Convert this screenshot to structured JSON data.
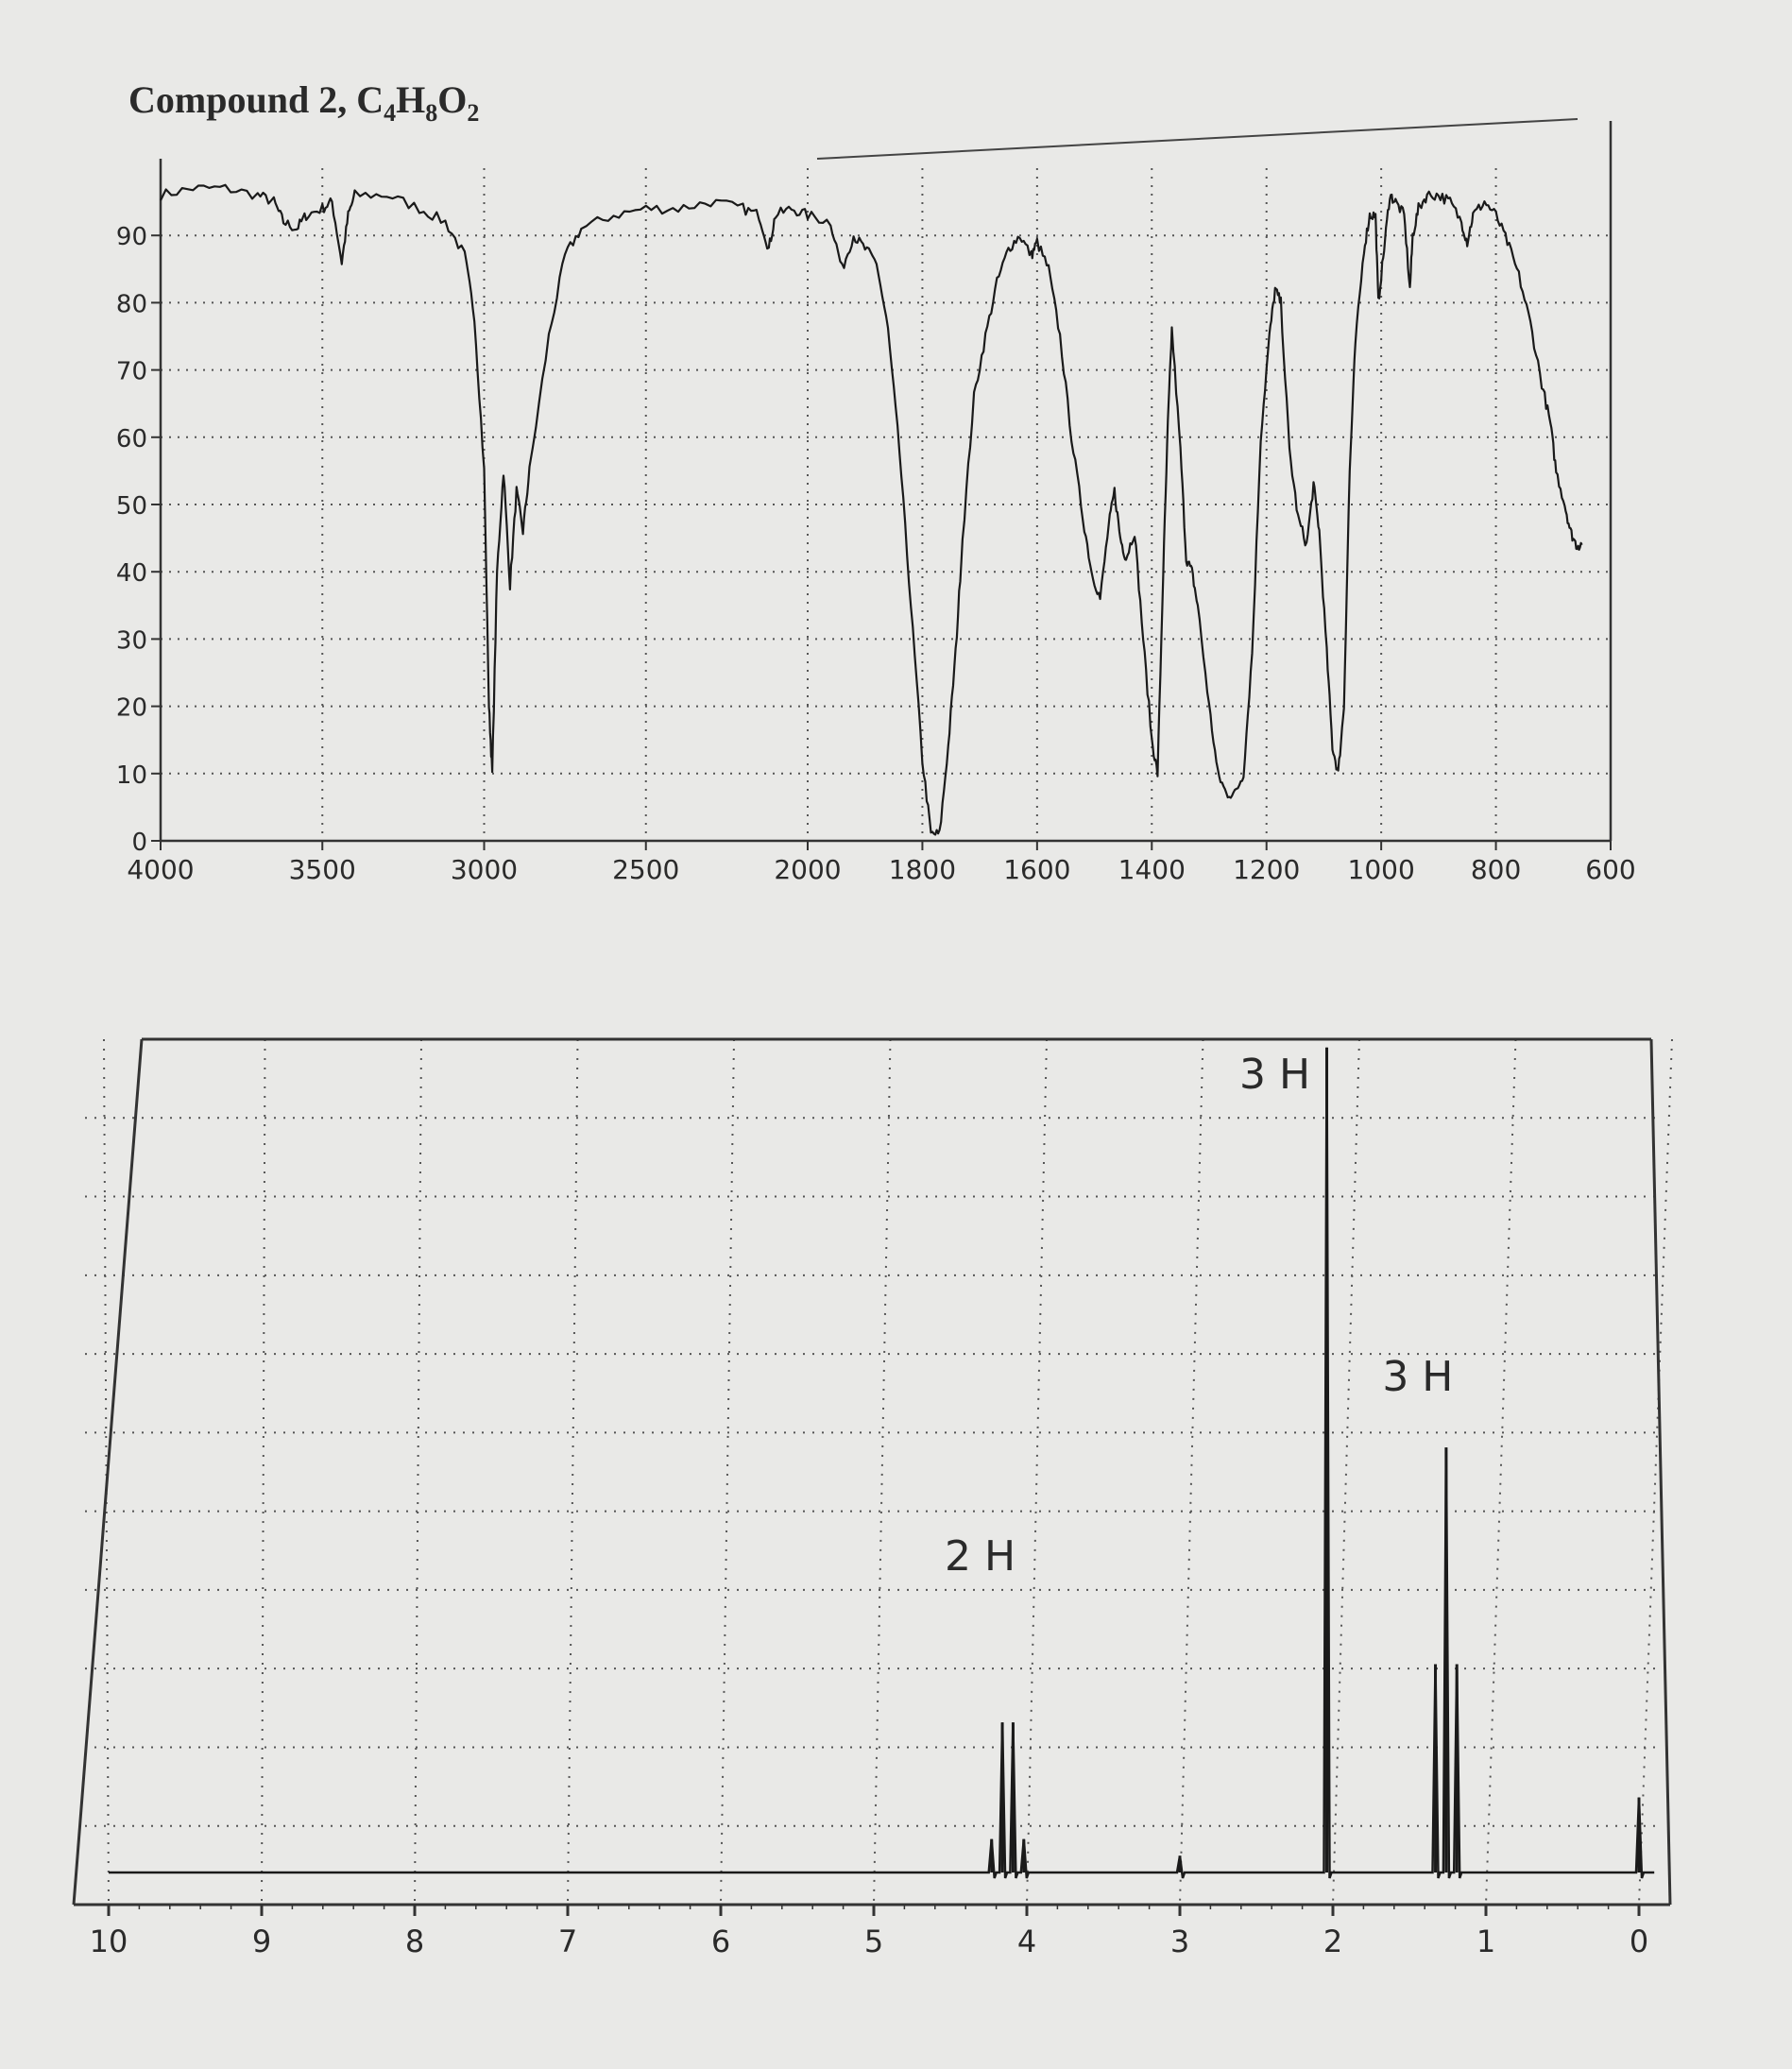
{
  "title": {
    "label": "Compound 2,",
    "formula": [
      {
        "el": "C",
        "n": "4"
      },
      {
        "el": "H",
        "n": "8"
      },
      {
        "el": "O",
        "n": "2"
      }
    ]
  },
  "chart_data": [
    {
      "type": "line",
      "name": "IR spectrum",
      "xlabel": "",
      "ylabel": "",
      "x_ticks": [
        4000,
        3500,
        3000,
        2500,
        2000,
        1800,
        1600,
        1400,
        1200,
        1000,
        800,
        600
      ],
      "y_ticks": [
        0,
        10,
        20,
        30,
        40,
        50,
        60,
        70,
        80,
        90
      ],
      "xlim": [
        4000,
        600
      ],
      "ylim": [
        0,
        100
      ],
      "x_axis_note": "scale changes at 2000 (2x expansion below 2000)",
      "grid": true,
      "points": [
        [
          4000,
          96
        ],
        [
          3900,
          97
        ],
        [
          3800,
          97
        ],
        [
          3700,
          96
        ],
        [
          3650,
          95
        ],
        [
          3620,
          92
        ],
        [
          3580,
          91
        ],
        [
          3550,
          93
        ],
        [
          3500,
          94
        ],
        [
          3470,
          95
        ],
        [
          3440,
          86
        ],
        [
          3420,
          93
        ],
        [
          3400,
          96
        ],
        [
          3300,
          96
        ],
        [
          3200,
          94
        ],
        [
          3120,
          92
        ],
        [
          3060,
          87
        ],
        [
          3030,
          78
        ],
        [
          3000,
          55
        ],
        [
          2985,
          20
        ],
        [
          2975,
          10
        ],
        [
          2960,
          40
        ],
        [
          2940,
          55
        ],
        [
          2920,
          38
        ],
        [
          2900,
          52
        ],
        [
          2880,
          46
        ],
        [
          2860,
          55
        ],
        [
          2800,
          75
        ],
        [
          2750,
          87
        ],
        [
          2700,
          91
        ],
        [
          2600,
          93
        ],
        [
          2500,
          94
        ],
        [
          2400,
          94
        ],
        [
          2300,
          95
        ],
        [
          2200,
          94
        ],
        [
          2150,
          93
        ],
        [
          2120,
          88
        ],
        [
          2100,
          93
        ],
        [
          2050,
          94
        ],
        [
          2000,
          93
        ],
        [
          1960,
          92
        ],
        [
          1940,
          85
        ],
        [
          1920,
          90
        ],
        [
          1900,
          88
        ],
        [
          1880,
          86
        ],
        [
          1860,
          76
        ],
        [
          1840,
          58
        ],
        [
          1820,
          35
        ],
        [
          1800,
          12
        ],
        [
          1785,
          1
        ],
        [
          1770,
          1
        ],
        [
          1755,
          14
        ],
        [
          1742,
          28
        ],
        [
          1730,
          45
        ],
        [
          1710,
          66
        ],
        [
          1690,
          75
        ],
        [
          1670,
          83
        ],
        [
          1650,
          88
        ],
        [
          1630,
          90
        ],
        [
          1610,
          87
        ],
        [
          1600,
          89
        ],
        [
          1580,
          85
        ],
        [
          1560,
          75
        ],
        [
          1540,
          60
        ],
        [
          1520,
          48
        ],
        [
          1505,
          40
        ],
        [
          1490,
          36
        ],
        [
          1475,
          47
        ],
        [
          1465,
          52
        ],
        [
          1455,
          45
        ],
        [
          1445,
          42
        ],
        [
          1430,
          46
        ],
        [
          1415,
          30
        ],
        [
          1400,
          15
        ],
        [
          1390,
          10
        ],
        [
          1380,
          40
        ],
        [
          1372,
          62
        ],
        [
          1365,
          76
        ],
        [
          1350,
          58
        ],
        [
          1340,
          42
        ],
        [
          1330,
          40
        ],
        [
          1320,
          35
        ],
        [
          1300,
          20
        ],
        [
          1285,
          10
        ],
        [
          1270,
          7
        ],
        [
          1255,
          7
        ],
        [
          1240,
          10
        ],
        [
          1225,
          28
        ],
        [
          1210,
          60
        ],
        [
          1195,
          75
        ],
        [
          1185,
          82
        ],
        [
          1175,
          80
        ],
        [
          1160,
          58
        ],
        [
          1145,
          48
        ],
        [
          1130,
          44
        ],
        [
          1118,
          53
        ],
        [
          1108,
          46
        ],
        [
          1095,
          28
        ],
        [
          1085,
          14
        ],
        [
          1075,
          10
        ],
        [
          1065,
          20
        ],
        [
          1055,
          55
        ],
        [
          1045,
          74
        ],
        [
          1030,
          88
        ],
        [
          1020,
          93
        ],
        [
          1010,
          93
        ],
        [
          1005,
          80
        ],
        [
          995,
          88
        ],
        [
          985,
          96
        ],
        [
          975,
          95
        ],
        [
          960,
          93
        ],
        [
          950,
          82
        ],
        [
          945,
          90
        ],
        [
          935,
          94
        ],
        [
          920,
          96
        ],
        [
          900,
          96
        ],
        [
          880,
          95
        ],
        [
          860,
          92
        ],
        [
          850,
          89
        ],
        [
          840,
          93
        ],
        [
          820,
          95
        ],
        [
          800,
          93
        ],
        [
          780,
          89
        ],
        [
          760,
          84
        ],
        [
          740,
          77
        ],
        [
          720,
          68
        ],
        [
          705,
          62
        ],
        [
          695,
          55
        ],
        [
          680,
          50
        ],
        [
          670,
          46
        ],
        [
          660,
          44
        ],
        [
          650,
          44
        ]
      ]
    },
    {
      "type": "line",
      "name": "1H NMR spectrum",
      "xlabel": "",
      "ylabel": "",
      "x_ticks": [
        10,
        9,
        8,
        7,
        6,
        5,
        4,
        3,
        2,
        1,
        0
      ],
      "xlim": [
        10,
        0
      ],
      "ylim": [
        0,
        100
      ],
      "grid": true,
      "integration_labels": [
        {
          "text": "3 H",
          "ppm": 2.04
        },
        {
          "text": "3 H",
          "ppm": 1.26
        },
        {
          "text": "2 H",
          "ppm": 4.12
        }
      ],
      "peaks": [
        {
          "ppm": 4.23,
          "height": 4
        },
        {
          "ppm": 4.16,
          "height": 18
        },
        {
          "ppm": 4.09,
          "height": 18
        },
        {
          "ppm": 4.02,
          "height": 4
        },
        {
          "ppm": 2.04,
          "height": 99
        },
        {
          "ppm": 1.33,
          "height": 25
        },
        {
          "ppm": 1.26,
          "height": 51
        },
        {
          "ppm": 1.19,
          "height": 25
        },
        {
          "ppm": 3.0,
          "height": 2
        },
        {
          "ppm": 0.0,
          "height": 9
        }
      ]
    }
  ]
}
